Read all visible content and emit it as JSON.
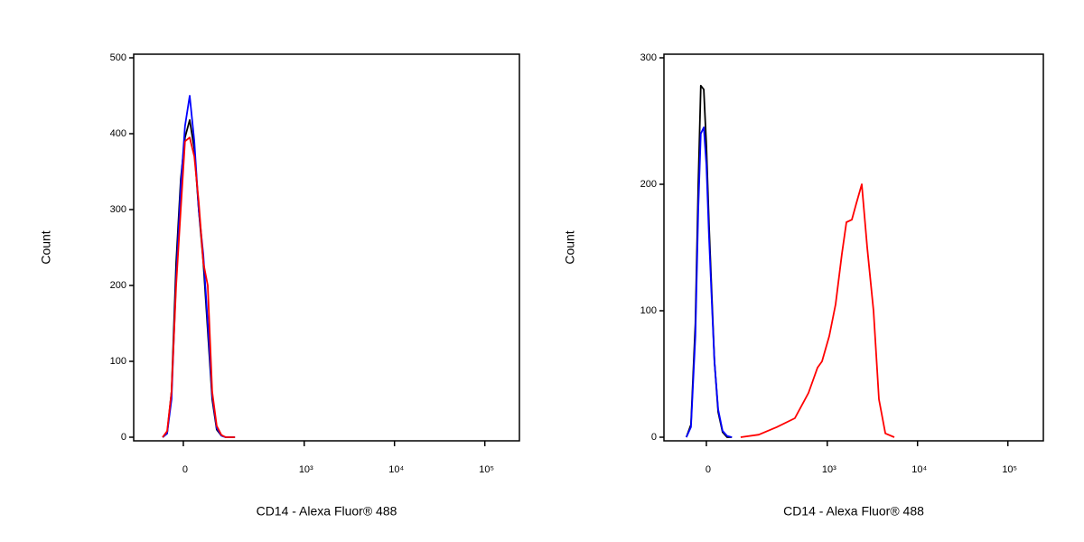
{
  "chart_data": [
    {
      "type": "line",
      "xscale": "biexponential",
      "x_label": "CD14 - Alexa Fluor® 488",
      "y_label": "Count",
      "xlim": [
        -150,
        241500
      ],
      "ylim": [
        0,
        500
      ],
      "xticks": [
        0,
        {
          "value": 1000,
          "label": "10³"
        },
        {
          "value": 10000,
          "label": "10⁴"
        },
        {
          "value": 100000,
          "label": "10⁵"
        }
      ],
      "yticks": [
        0,
        100,
        200,
        300,
        400,
        500
      ],
      "series": [
        {
          "color": "#000000",
          "x": [
            -51,
            -39,
            -28,
            -17,
            -6,
            4,
            15,
            26,
            37,
            49,
            61,
            74,
            88,
            104,
            120,
            139,
            159
          ],
          "values": [
            0,
            5,
            60,
            230,
            340,
            395,
            418,
            380,
            300,
            230,
            140,
            50,
            10,
            2,
            0,
            0,
            0
          ]
        },
        {
          "color": "#0000ff",
          "x": [
            -51,
            -39,
            -28,
            -17,
            -6,
            4,
            15,
            26,
            37,
            49,
            61,
            74,
            88,
            104,
            120,
            139,
            159
          ],
          "values": [
            0,
            5,
            50,
            210,
            330,
            410,
            450,
            390,
            300,
            240,
            150,
            55,
            12,
            2,
            0,
            0,
            0
          ]
        },
        {
          "color": "#ff0000",
          "x": [
            -51,
            -39,
            -28,
            -17,
            -6,
            4,
            15,
            26,
            37,
            49,
            61,
            74,
            88,
            104,
            120,
            139,
            159
          ],
          "values": [
            0,
            8,
            60,
            200,
            300,
            390,
            395,
            370,
            310,
            230,
            200,
            60,
            15,
            3,
            0,
            0,
            0
          ]
        }
      ]
    },
    {
      "type": "line",
      "xscale": "biexponential",
      "x_label": "CD14 - Alexa Fluor® 488",
      "y_label": "Count",
      "xlim": [
        -120,
        247000
      ],
      "ylim": [
        0,
        300
      ],
      "xticks": [
        0,
        {
          "value": 1000,
          "label": "10³"
        },
        {
          "value": 10000,
          "label": "10⁴"
        },
        {
          "value": 100000,
          "label": "10⁵"
        }
      ],
      "yticks": [
        0,
        100,
        200,
        300
      ],
      "series": [
        {
          "color": "#000000",
          "x": [
            -49,
            -37,
            -26,
            -19,
            -13,
            -6,
            0,
            6,
            13,
            19,
            28,
            39,
            51,
            64
          ],
          "values": [
            0,
            10,
            90,
            200,
            278,
            275,
            230,
            170,
            110,
            60,
            20,
            4,
            0,
            0
          ]
        },
        {
          "color": "#0000ff",
          "x": [
            -49,
            -37,
            -26,
            -19,
            -13,
            -6,
            0,
            6,
            13,
            19,
            28,
            39,
            51,
            64
          ],
          "values": [
            0,
            8,
            80,
            180,
            240,
            245,
            215,
            160,
            105,
            60,
            22,
            5,
            1,
            0
          ]
        },
        {
          "color": "#ff0000",
          "x": [
            91,
            163,
            269,
            434,
            617,
            779,
            875,
            1052,
            1237,
            1454,
            1633,
            1875,
            2104,
            2416,
            2774,
            3261,
            3744,
            4400,
            5538
          ],
          "values": [
            0,
            2,
            8,
            15,
            35,
            55,
            60,
            80,
            105,
            145,
            170,
            172,
            185,
            200,
            150,
            100,
            30,
            3,
            0
          ]
        }
      ]
    }
  ]
}
